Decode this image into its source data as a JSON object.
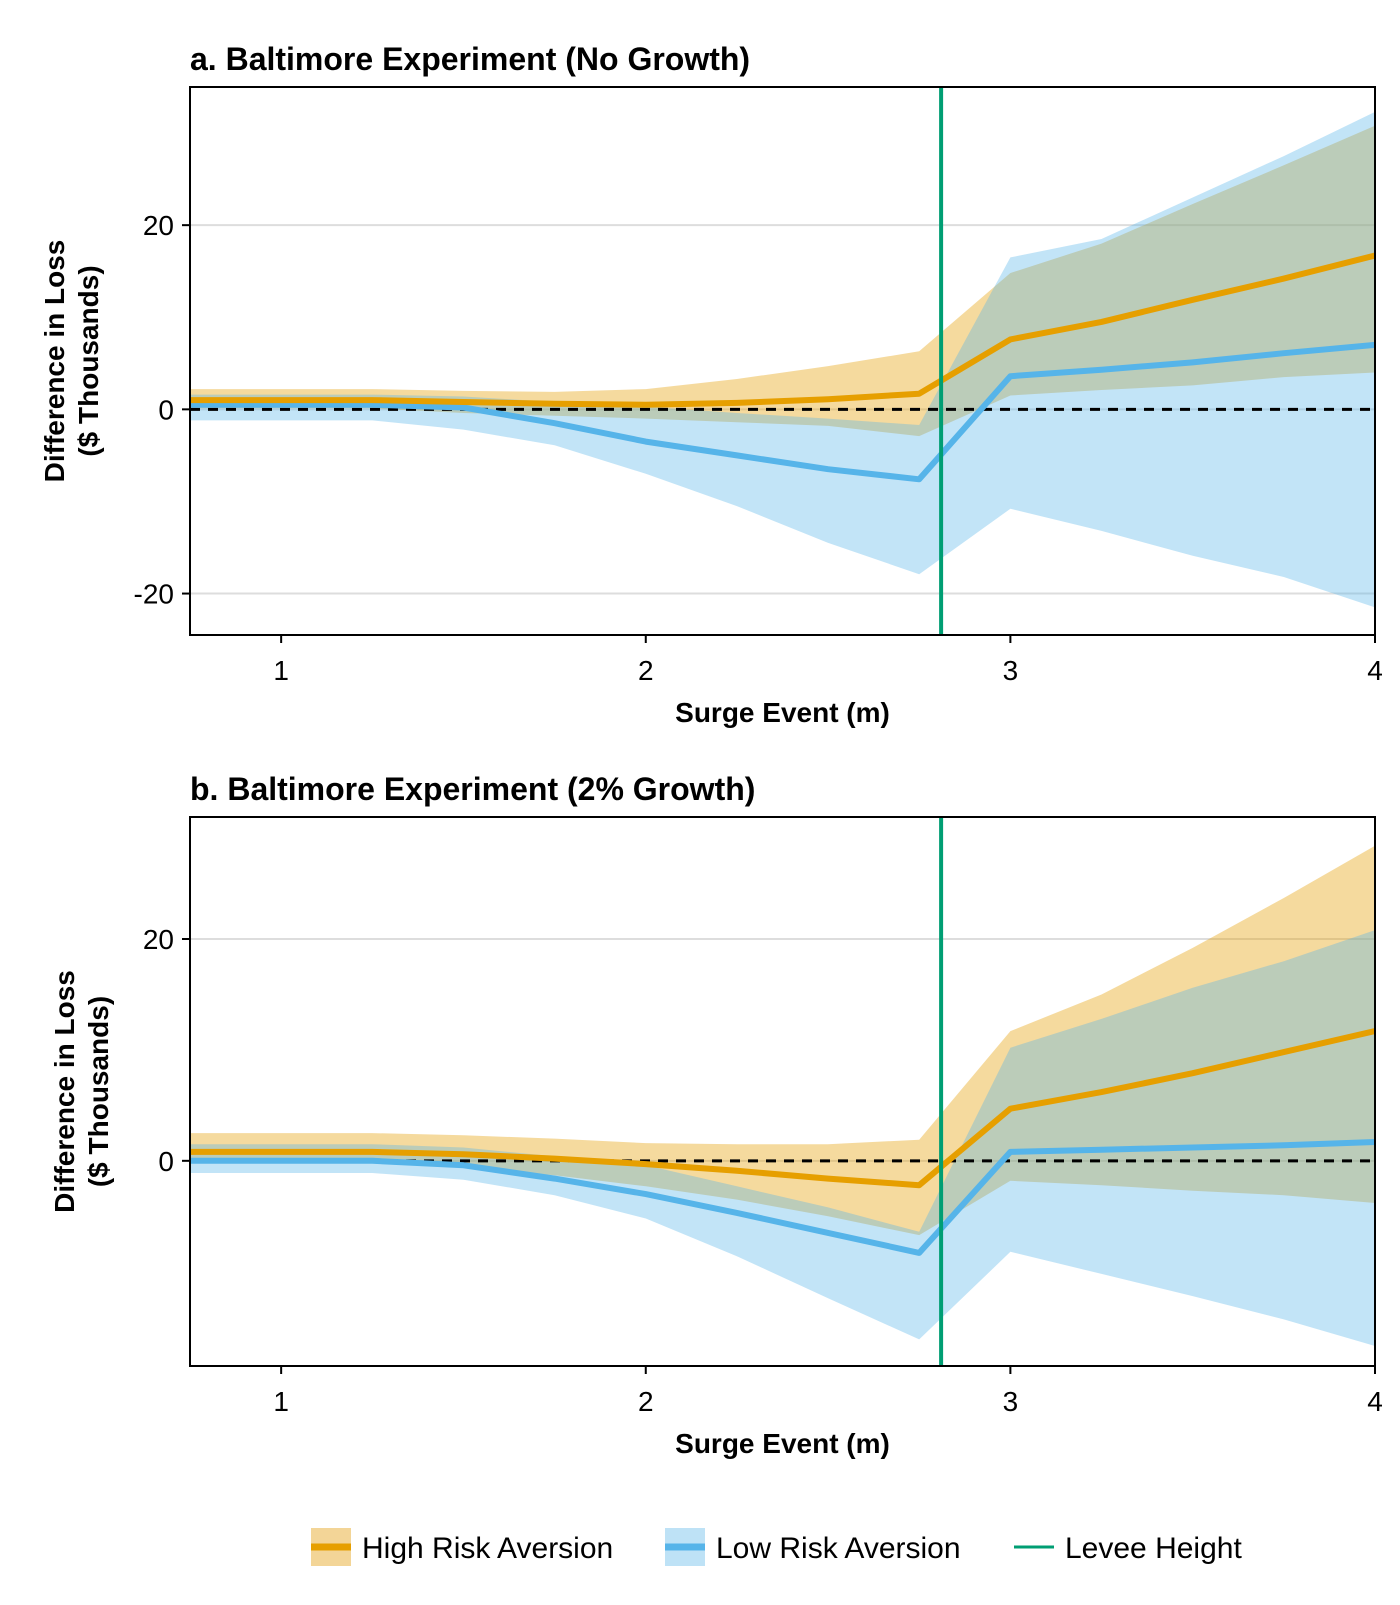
{
  "colors": {
    "high": "#E69F00",
    "high_band": "#F3D597",
    "low": "#56B4E9",
    "low_band": "#BEE2F6",
    "overlap": "#CECCA1",
    "overlap_line": "#7FA793",
    "levee": "#009E73",
    "zero_line": "#000000",
    "grid": "#DDDDDD"
  },
  "legend": {
    "high": "High Risk Aversion",
    "low": "Low Risk Aversion",
    "levee": "Levee Height"
  },
  "chart_data": [
    {
      "type": "line",
      "title": "a. Baltimore Experiment (No Growth)",
      "xlabel": "Surge Event (m)",
      "ylabel": [
        "Difference in Loss",
        "($ Thousands)"
      ],
      "xlim": [
        0.75,
        4.0
      ],
      "ylim": [
        -24.5,
        35
      ],
      "xticks": [
        1,
        2,
        3,
        4
      ],
      "yticks": [
        -20,
        0,
        20
      ],
      "levee_height": 2.81,
      "zero_line": 0,
      "x": [
        0.75,
        1.0,
        1.25,
        1.5,
        1.75,
        2.0,
        2.25,
        2.5,
        2.75,
        3.0,
        3.25,
        3.5,
        3.75,
        4.0
      ],
      "series": [
        {
          "name": "High Risk Aversion",
          "values": [
            1.0,
            1.0,
            1.0,
            0.8,
            0.6,
            0.5,
            0.7,
            1.1,
            1.7,
            7.6,
            9.5,
            11.9,
            14.2,
            16.7
          ],
          "upper": [
            2.2,
            2.2,
            2.2,
            2.0,
            1.9,
            2.2,
            3.3,
            4.7,
            6.3,
            14.8,
            18.0,
            22.3,
            26.5,
            30.8
          ],
          "lower": [
            0.1,
            0.1,
            0.1,
            -0.4,
            -0.7,
            -1.0,
            -1.4,
            -1.8,
            -2.9,
            1.5,
            2.1,
            2.6,
            3.5,
            4.0
          ]
        },
        {
          "name": "Low Risk Aversion",
          "values": [
            0.5,
            0.5,
            0.5,
            0.2,
            -1.5,
            -3.5,
            -5.0,
            -6.5,
            -7.6,
            3.6,
            4.3,
            5.1,
            6.1,
            7.0
          ],
          "upper": [
            1.6,
            1.6,
            1.6,
            1.4,
            0.8,
            0.3,
            -0.4,
            -1.0,
            -1.7,
            16.5,
            18.5,
            23.0,
            27.5,
            32.3
          ],
          "lower": [
            -1.2,
            -1.2,
            -1.2,
            -2.2,
            -3.9,
            -7.0,
            -10.5,
            -14.5,
            -17.9,
            -10.8,
            -13.2,
            -15.9,
            -18.2,
            -21.5
          ]
        }
      ]
    },
    {
      "type": "line",
      "title": "b. Baltimore Experiment (2% Growth)",
      "xlabel": "Surge Event (m)",
      "ylabel": [
        "Difference in Loss",
        "($ Thousands)"
      ],
      "xlim": [
        0.75,
        4.0
      ],
      "ylim": [
        -18.5,
        31
      ],
      "xticks": [
        1,
        2,
        3,
        4
      ],
      "yticks": [
        0,
        20
      ],
      "levee_height": 2.81,
      "zero_line": 0,
      "x": [
        0.75,
        1.0,
        1.25,
        1.5,
        1.75,
        2.0,
        2.25,
        2.5,
        2.75,
        3.0,
        3.25,
        3.5,
        3.75,
        4.0
      ],
      "series": [
        {
          "name": "High Risk Aversion",
          "values": [
            0.8,
            0.8,
            0.8,
            0.6,
            0.2,
            -0.3,
            -0.9,
            -1.6,
            -2.2,
            4.7,
            6.2,
            7.9,
            9.8,
            11.7
          ],
          "upper": [
            2.5,
            2.5,
            2.5,
            2.3,
            2.0,
            1.6,
            1.5,
            1.5,
            1.9,
            11.7,
            15.0,
            19.2,
            23.7,
            28.4
          ],
          "lower": [
            0.0,
            0.0,
            0.0,
            -0.6,
            -1.3,
            -2.3,
            -3.5,
            -5.0,
            -6.7,
            -1.8,
            -2.2,
            -2.7,
            -3.1,
            -3.8
          ]
        },
        {
          "name": "Low Risk Aversion",
          "values": [
            0.0,
            0.0,
            0.0,
            -0.4,
            -1.6,
            -3.0,
            -4.7,
            -6.5,
            -8.3,
            0.8,
            1.0,
            1.2,
            1.4,
            1.7
          ],
          "upper": [
            1.5,
            1.5,
            1.5,
            1.2,
            0.4,
            -0.4,
            -2.3,
            -4.2,
            -6.4,
            10.2,
            12.8,
            15.6,
            18.0,
            20.8
          ],
          "lower": [
            -1.1,
            -1.1,
            -1.1,
            -1.7,
            -3.1,
            -5.2,
            -8.6,
            -12.4,
            -16.1,
            -8.2,
            -10.2,
            -12.2,
            -14.3,
            -16.7
          ]
        }
      ]
    }
  ]
}
